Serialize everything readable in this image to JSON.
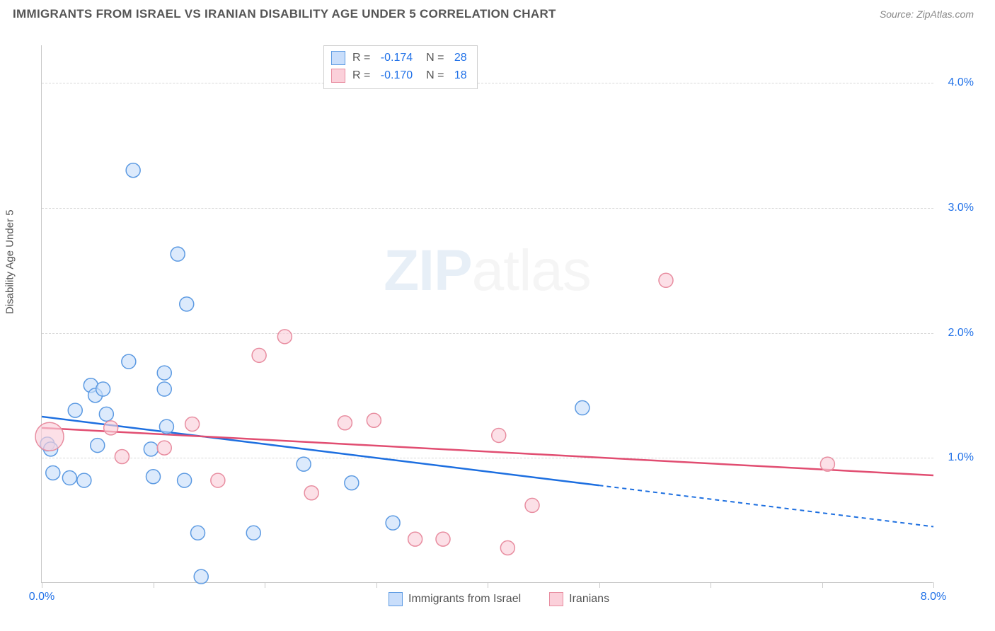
{
  "header": {
    "title": "IMMIGRANTS FROM ISRAEL VS IRANIAN DISABILITY AGE UNDER 5 CORRELATION CHART",
    "source": "Source: ZipAtlas.com"
  },
  "chart": {
    "type": "scatter",
    "y_axis_label": "Disability Age Under 5",
    "watermark": {
      "bold": "ZIP",
      "rest": "atlas"
    },
    "xlim": [
      0.0,
      8.0
    ],
    "ylim": [
      0.0,
      4.3
    ],
    "x_ticks": [
      0.0,
      1.0,
      2.0,
      3.0,
      4.0,
      5.0,
      6.0,
      7.0,
      8.0
    ],
    "x_tick_labels_shown": {
      "0": "0.0%",
      "8": "8.0%"
    },
    "y_ticks": [
      1.0,
      2.0,
      3.0,
      4.0
    ],
    "y_tick_labels": [
      "1.0%",
      "2.0%",
      "3.0%",
      "4.0%"
    ],
    "grid_color": "#d8d8d8",
    "background_color": "#ffffff",
    "axis_color": "#c9c9c9",
    "tick_label_color": "#2071e8",
    "series": [
      {
        "name": "Immigrants from Israel",
        "color_fill": "#c9defb",
        "color_stroke": "#5c9ae2",
        "marker_radius": 10,
        "trend": {
          "solid": {
            "x1": 0.0,
            "y1": 1.33,
            "x2": 5.0,
            "y2": 0.78
          },
          "dashed": {
            "x1": 5.0,
            "y1": 0.78,
            "x2": 8.0,
            "y2": 0.45
          },
          "color": "#1d6fe0",
          "width": 2.5
        },
        "stats": {
          "R": "-0.174",
          "N": "28"
        },
        "points": [
          {
            "x": 0.82,
            "y": 3.3
          },
          {
            "x": 1.22,
            "y": 2.63
          },
          {
            "x": 1.3,
            "y": 2.23
          },
          {
            "x": 0.78,
            "y": 1.77
          },
          {
            "x": 0.44,
            "y": 1.58
          },
          {
            "x": 0.48,
            "y": 1.5
          },
          {
            "x": 1.1,
            "y": 1.68
          },
          {
            "x": 0.3,
            "y": 1.38
          },
          {
            "x": 0.58,
            "y": 1.35
          },
          {
            "x": 0.05,
            "y": 1.11
          },
          {
            "x": 0.08,
            "y": 1.07
          },
          {
            "x": 0.98,
            "y": 1.07
          },
          {
            "x": 0.25,
            "y": 0.84
          },
          {
            "x": 0.38,
            "y": 0.82
          },
          {
            "x": 1.0,
            "y": 0.85
          },
          {
            "x": 1.28,
            "y": 0.82
          },
          {
            "x": 1.4,
            "y": 0.4
          },
          {
            "x": 1.43,
            "y": 0.05
          },
          {
            "x": 1.9,
            "y": 0.4
          },
          {
            "x": 2.35,
            "y": 0.95
          },
          {
            "x": 2.78,
            "y": 0.8
          },
          {
            "x": 3.15,
            "y": 0.48
          },
          {
            "x": 1.12,
            "y": 1.25
          },
          {
            "x": 0.55,
            "y": 1.55
          },
          {
            "x": 0.5,
            "y": 1.1
          },
          {
            "x": 0.1,
            "y": 0.88
          },
          {
            "x": 4.85,
            "y": 1.4
          },
          {
            "x": 1.1,
            "y": 1.55
          }
        ]
      },
      {
        "name": "Iranians",
        "color_fill": "#fbd0da",
        "color_stroke": "#e88da0",
        "marker_radius": 10,
        "trend": {
          "solid": {
            "x1": 0.0,
            "y1": 1.24,
            "x2": 8.0,
            "y2": 0.86
          },
          "color": "#e14d71",
          "width": 2.5
        },
        "stats": {
          "R": "-0.170",
          "N": "18"
        },
        "points": [
          {
            "x": 0.07,
            "y": 1.17,
            "r": 20
          },
          {
            "x": 0.62,
            "y": 1.24
          },
          {
            "x": 0.72,
            "y": 1.01
          },
          {
            "x": 1.1,
            "y": 1.08
          },
          {
            "x": 1.35,
            "y": 1.27
          },
          {
            "x": 1.58,
            "y": 0.82
          },
          {
            "x": 1.95,
            "y": 1.82
          },
          {
            "x": 2.18,
            "y": 1.97
          },
          {
            "x": 2.42,
            "y": 0.72
          },
          {
            "x": 2.72,
            "y": 1.28
          },
          {
            "x": 2.98,
            "y": 1.3
          },
          {
            "x": 3.35,
            "y": 0.35
          },
          {
            "x": 3.6,
            "y": 0.35
          },
          {
            "x": 4.1,
            "y": 1.18
          },
          {
            "x": 4.18,
            "y": 0.28
          },
          {
            "x": 4.4,
            "y": 0.62
          },
          {
            "x": 5.6,
            "y": 2.42
          },
          {
            "x": 7.05,
            "y": 0.95
          }
        ]
      }
    ]
  }
}
